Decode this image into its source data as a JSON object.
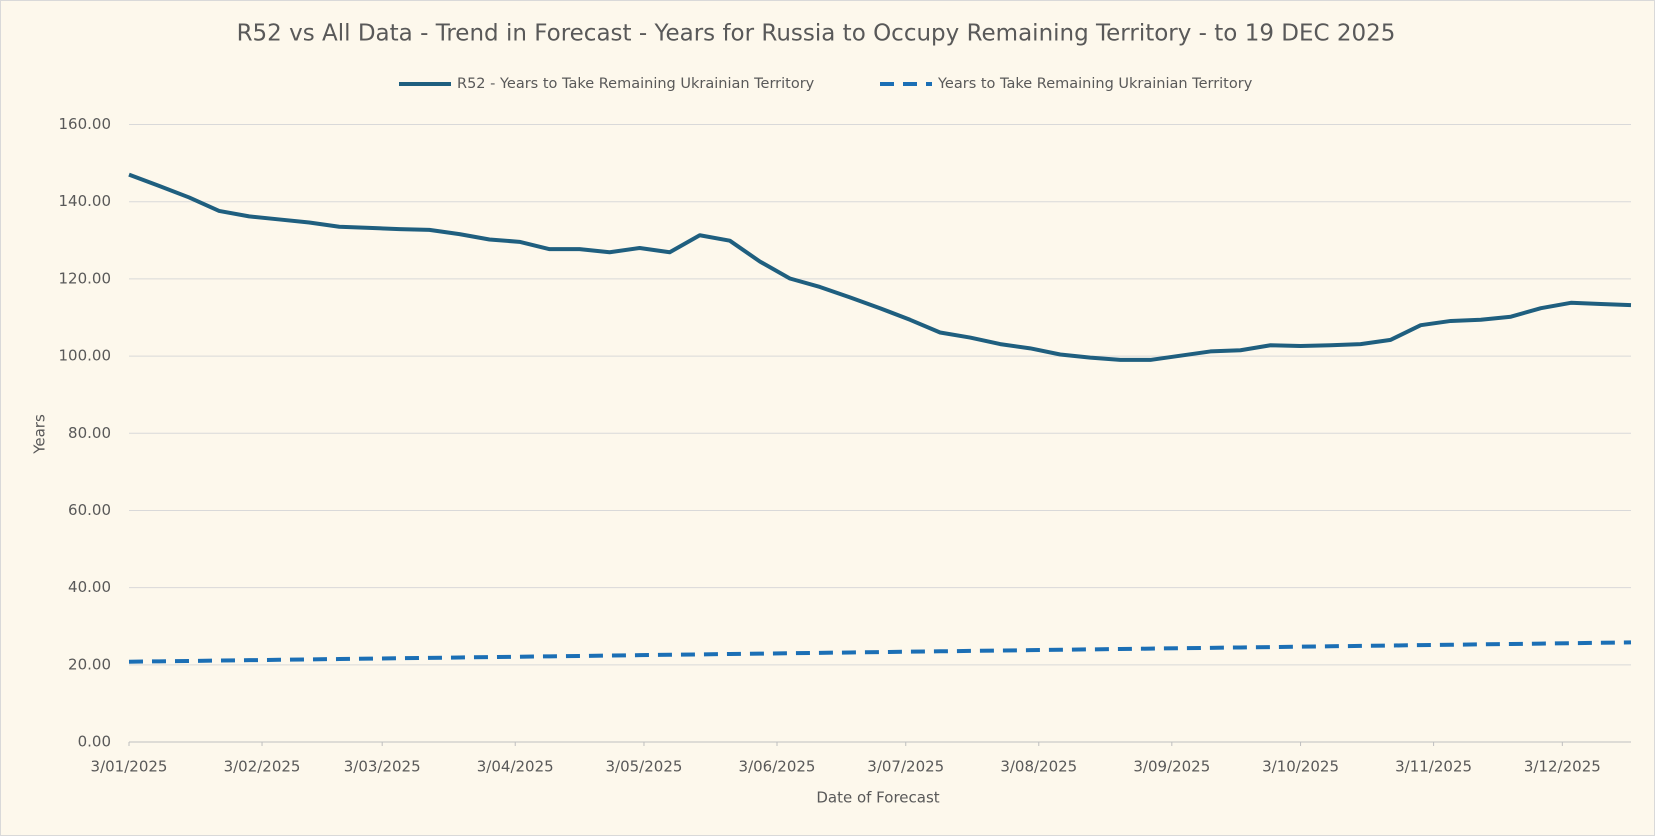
{
  "chart_data": {
    "type": "line",
    "title": "R52 vs All Data  - Trend in Forecast - Years for Russia to Occupy Remaining Territory - to 19 DEC 2025",
    "x_label": "Date of Forecast",
    "y_label": "Years",
    "x": [
      "2025-01-03",
      "2025-01-10",
      "2025-01-17",
      "2025-01-24",
      "2025-01-31",
      "2025-02-07",
      "2025-02-14",
      "2025-02-21",
      "2025-02-28",
      "2025-03-07",
      "2025-03-14",
      "2025-03-21",
      "2025-03-28",
      "2025-04-04",
      "2025-04-11",
      "2025-04-18",
      "2025-04-25",
      "2025-05-02",
      "2025-05-09",
      "2025-05-16",
      "2025-05-23",
      "2025-05-30",
      "2025-06-06",
      "2025-06-13",
      "2025-06-20",
      "2025-06-27",
      "2025-07-04",
      "2025-07-11",
      "2025-07-18",
      "2025-07-25",
      "2025-08-01",
      "2025-08-08",
      "2025-08-15",
      "2025-08-22",
      "2025-08-29",
      "2025-09-05",
      "2025-09-12",
      "2025-09-19",
      "2025-09-26",
      "2025-10-03",
      "2025-10-10",
      "2025-10-17",
      "2025-10-24",
      "2025-10-31",
      "2025-11-07",
      "2025-11-14",
      "2025-11-21",
      "2025-11-28",
      "2025-12-05",
      "2025-12-12",
      "2025-12-19"
    ],
    "series": [
      {
        "name": "R52 - Years to Take Remaining Ukrainian Territory",
        "color": "#1f5f7f",
        "line_style": "solid",
        "values": [
          147.0,
          144.1,
          141.1,
          137.6,
          136.2,
          135.4,
          134.6,
          133.5,
          133.2,
          132.9,
          132.7,
          131.6,
          130.2,
          129.6,
          127.7,
          127.7,
          126.9,
          128.0,
          126.9,
          131.3,
          129.9,
          124.5,
          120.1,
          117.9,
          115.2,
          112.4,
          109.4,
          106.1,
          104.8,
          103.1,
          102.0,
          100.4,
          99.6,
          99.0,
          99.0,
          100.1,
          101.2,
          101.5,
          102.8,
          102.6,
          102.8,
          103.1,
          104.2,
          108.0,
          109.1,
          109.4,
          110.2,
          112.4,
          113.8,
          113.5,
          113.2
        ]
      },
      {
        "name": "Years to Take Remaining Ukrainian Territory",
        "color": "#1b6fb5",
        "line_style": "dash",
        "values": [
          20.8,
          20.9,
          21.0,
          21.1,
          21.2,
          21.3,
          21.4,
          21.5,
          21.6,
          21.7,
          21.8,
          21.9,
          22.0,
          22.1,
          22.2,
          22.3,
          22.4,
          22.5,
          22.6,
          22.7,
          22.8,
          22.9,
          23.0,
          23.1,
          23.2,
          23.3,
          23.4,
          23.5,
          23.6,
          23.7,
          23.8,
          23.9,
          24.0,
          24.1,
          24.2,
          24.3,
          24.4,
          24.5,
          24.6,
          24.7,
          24.8,
          24.9,
          25.0,
          25.1,
          25.2,
          25.3,
          25.4,
          25.5,
          25.6,
          25.7,
          25.8
        ]
      }
    ],
    "xlim": [
      "2025-01-03",
      "2025-12-19"
    ],
    "xticks": [
      {
        "value": "2025-01-03",
        "label": "3/01/2025"
      },
      {
        "value": "2025-02-03",
        "label": "3/02/2025"
      },
      {
        "value": "2025-03-03",
        "label": "3/03/2025"
      },
      {
        "value": "2025-04-03",
        "label": "3/04/2025"
      },
      {
        "value": "2025-05-03",
        "label": "3/05/2025"
      },
      {
        "value": "2025-06-03",
        "label": "3/06/2025"
      },
      {
        "value": "2025-07-03",
        "label": "3/07/2025"
      },
      {
        "value": "2025-08-03",
        "label": "3/08/2025"
      },
      {
        "value": "2025-09-03",
        "label": "3/09/2025"
      },
      {
        "value": "2025-10-03",
        "label": "3/10/2025"
      },
      {
        "value": "2025-11-03",
        "label": "3/11/2025"
      },
      {
        "value": "2025-12-03",
        "label": "3/12/2025"
      }
    ],
    "ylim": [
      0,
      160
    ],
    "yticks": [
      {
        "value": 0,
        "label": "0.00"
      },
      {
        "value": 20,
        "label": "20.00"
      },
      {
        "value": 40,
        "label": "40.00"
      },
      {
        "value": 60,
        "label": "60.00"
      },
      {
        "value": 80,
        "label": "80.00"
      },
      {
        "value": 100,
        "label": "100.00"
      },
      {
        "value": 120,
        "label": "120.00"
      },
      {
        "value": 140,
        "label": "140.00"
      },
      {
        "value": 160,
        "label": "160.00"
      }
    ],
    "grid": true,
    "legend_position": "top"
  }
}
